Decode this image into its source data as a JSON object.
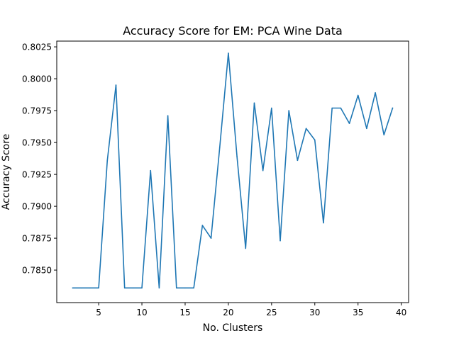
{
  "chart_data": {
    "type": "line",
    "title": "Accuracy Score for EM: PCA Wine Data",
    "xlabel": "No. Clusters",
    "ylabel": "Accuracy Score",
    "xlim": [
      0.15,
      40.85
    ],
    "ylim": [
      0.78245,
      0.80295
    ],
    "xticks": [
      5,
      10,
      15,
      20,
      25,
      30,
      35,
      40
    ],
    "xtick_labels": [
      "5",
      "10",
      "15",
      "20",
      "25",
      "30",
      "35",
      "40"
    ],
    "yticks": [
      0.785,
      0.7875,
      0.79,
      0.7925,
      0.795,
      0.7975,
      0.8,
      0.8025
    ],
    "ytick_labels": [
      "0.7850",
      "0.7875",
      "0.7900",
      "0.7925",
      "0.7950",
      "0.7975",
      "0.8000",
      "0.8025"
    ],
    "grid": false,
    "line_color": "#1f77b4",
    "x": [
      2,
      3,
      4,
      5,
      6,
      7,
      8,
      9,
      10,
      11,
      12,
      13,
      14,
      15,
      16,
      17,
      18,
      19,
      20,
      21,
      22,
      23,
      24,
      25,
      26,
      27,
      28,
      29,
      30,
      31,
      32,
      33,
      34,
      35,
      36,
      37,
      38,
      39
    ],
    "series": [
      {
        "values": [
          0.7836,
          0.7836,
          0.7836,
          0.7836,
          0.7936,
          0.7995,
          0.7836,
          0.7836,
          0.7836,
          0.7928,
          0.7836,
          0.7971,
          0.7836,
          0.7836,
          0.7836,
          0.7885,
          0.7875,
          0.7946,
          0.802,
          0.7939,
          0.7867,
          0.7981,
          0.7928,
          0.7977,
          0.7873,
          0.7975,
          0.7936,
          0.7961,
          0.7952,
          0.7887,
          0.7977,
          0.7977,
          0.7965,
          0.7987,
          0.7961,
          0.7989,
          0.7956,
          0.7977
        ]
      }
    ]
  }
}
